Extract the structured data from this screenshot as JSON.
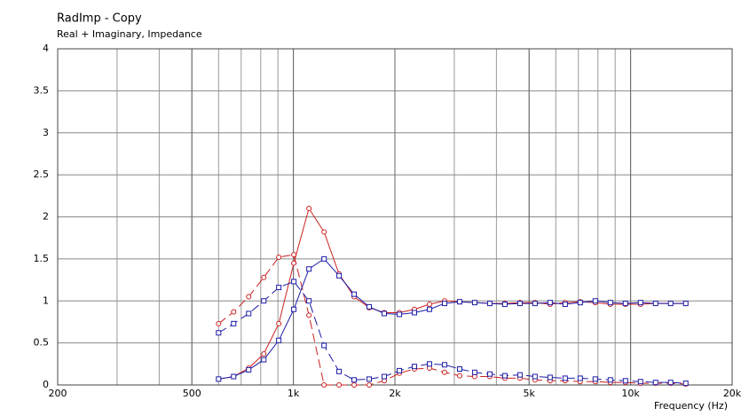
{
  "chart_data": {
    "type": "line",
    "title": "RadImp - Copy",
    "subtitle": "Real + Imaginary, Impedance",
    "x_label": "Frequency (Hz)",
    "x_log": true,
    "grid": true,
    "minor_grid": true,
    "xlim": [
      200,
      20000
    ],
    "xticks": [
      200,
      500,
      {
        "value": 1000,
        "label": "1k"
      },
      {
        "value": 2000,
        "label": "2k"
      },
      {
        "value": 5000,
        "label": "5k"
      },
      {
        "value": 10000,
        "label": "10k"
      },
      {
        "value": 20000,
        "label": "20k"
      }
    ],
    "ylim": [
      0,
      4
    ],
    "yticks": [
      0,
      0.5,
      1,
      1.5,
      2,
      2.5,
      3,
      3.5,
      4
    ],
    "x": [
      600,
      665,
      737,
      817,
      905,
      1003,
      1112,
      1233,
      1366,
      1514,
      1678,
      1860,
      2062,
      2285,
      2533,
      2807,
      3112,
      3449,
      3823,
      4237,
      4697,
      5206,
      5770,
      6396,
      7089,
      7857,
      8709,
      9653,
      10700,
      11860,
      13145,
      14570
    ],
    "series": [
      {
        "color": "#cc2020",
        "marker": "circle",
        "dashed": false,
        "values": [
          0.07,
          0.1,
          0.2,
          0.37,
          0.73,
          1.45,
          2.1,
          1.82,
          1.32,
          1.05,
          0.92,
          0.86,
          0.86,
          0.9,
          0.96,
          1.0,
          0.99,
          0.98,
          0.97,
          0.97,
          0.98,
          0.98,
          0.96,
          0.98,
          0.99,
          0.98,
          0.96,
          0.96,
          0.96,
          0.97,
          0.97,
          0.97
        ]
      },
      {
        "color": "#cc2020",
        "marker": "circle",
        "dashed": true,
        "values": [
          0.73,
          0.87,
          1.05,
          1.28,
          1.52,
          1.55,
          0.83,
          0,
          0,
          0,
          0,
          0.05,
          0.14,
          0.19,
          0.2,
          0.15,
          0.11,
          0.1,
          0.1,
          0.08,
          0.08,
          0.06,
          0.05,
          0.05,
          0.04,
          0.04,
          0.03,
          0.03,
          0.02,
          0.02,
          0.02,
          0.01
        ]
      },
      {
        "color": "#1c1ca8",
        "marker": "square",
        "dashed": false,
        "values": [
          0.07,
          0.1,
          0.18,
          0.3,
          0.53,
          0.9,
          1.38,
          1.5,
          1.3,
          1.08,
          0.93,
          0.85,
          0.84,
          0.86,
          0.9,
          0.97,
          0.99,
          0.98,
          0.97,
          0.96,
          0.97,
          0.97,
          0.98,
          0.96,
          0.98,
          1.0,
          0.98,
          0.97,
          0.98,
          0.97,
          0.97,
          0.97
        ]
      },
      {
        "color": "#1c1ca8",
        "marker": "square",
        "dashed": true,
        "values": [
          0.62,
          0.73,
          0.85,
          1.0,
          1.16,
          1.23,
          1.0,
          0.47,
          0.16,
          0.06,
          0.07,
          0.1,
          0.17,
          0.22,
          0.25,
          0.24,
          0.19,
          0.15,
          0.13,
          0.11,
          0.12,
          0.1,
          0.09,
          0.08,
          0.08,
          0.07,
          0.06,
          0.05,
          0.04,
          0.03,
          0.03,
          0.02
        ]
      }
    ]
  }
}
